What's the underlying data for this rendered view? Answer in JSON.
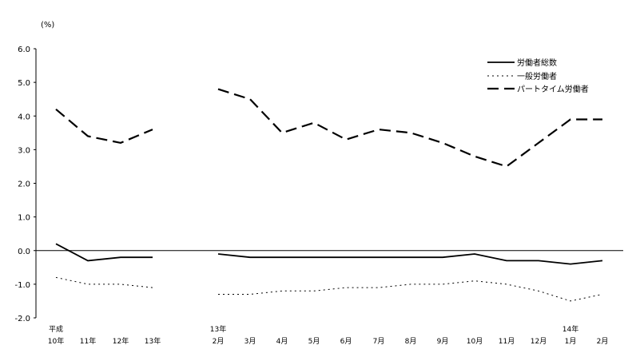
{
  "chart_data": {
    "type": "line",
    "unit_label": "(%)",
    "ylim": [
      -2.0,
      6.0
    ],
    "yticks": [
      "6.0",
      "5.0",
      "4.0",
      "3.0",
      "2.0",
      "1.0",
      "0.0",
      "-1.0",
      "-2.0"
    ],
    "x_labels": [
      {
        "top": "平成",
        "bottom": "10年"
      },
      {
        "top": "",
        "bottom": "11年"
      },
      {
        "top": "",
        "bottom": "12年"
      },
      {
        "top": "",
        "bottom": "13年"
      },
      {
        "top": "13年",
        "bottom": "2月"
      },
      {
        "top": "",
        "bottom": "3月"
      },
      {
        "top": "",
        "bottom": "4月"
      },
      {
        "top": "",
        "bottom": "5月"
      },
      {
        "top": "",
        "bottom": "6月"
      },
      {
        "top": "",
        "bottom": "7月"
      },
      {
        "top": "",
        "bottom": "8月"
      },
      {
        "top": "",
        "bottom": "9月"
      },
      {
        "top": "",
        "bottom": "10月"
      },
      {
        "top": "",
        "bottom": "11月"
      },
      {
        "top": "",
        "bottom": "12月"
      },
      {
        "top": "14年",
        "bottom": "1月"
      },
      {
        "top": "",
        "bottom": "2月"
      }
    ],
    "legend": "top-right",
    "series": [
      {
        "name": "労働者総数",
        "style": "solid",
        "annual": [
          0.2,
          -0.3,
          -0.2,
          -0.2
        ],
        "monthly": [
          -0.1,
          -0.2,
          -0.2,
          -0.2,
          -0.2,
          -0.2,
          -0.2,
          -0.2,
          -0.1,
          -0.3,
          -0.3,
          -0.4,
          -0.3
        ]
      },
      {
        "name": "一般労働者",
        "style": "dotted",
        "annual": [
          -0.8,
          -1.0,
          -1.0,
          -1.1
        ],
        "monthly": [
          -1.3,
          -1.3,
          -1.2,
          -1.2,
          -1.1,
          -1.1,
          -1.0,
          -1.0,
          -0.9,
          -1.0,
          -1.2,
          -1.5,
          -1.3
        ]
      },
      {
        "name": "パートタイム労働者",
        "style": "dashed",
        "annual": [
          4.2,
          3.4,
          3.2,
          3.6
        ],
        "monthly": [
          4.8,
          4.5,
          3.5,
          3.8,
          3.3,
          3.6,
          3.5,
          3.2,
          2.8,
          2.5,
          3.2,
          3.9,
          3.9
        ]
      }
    ]
  }
}
